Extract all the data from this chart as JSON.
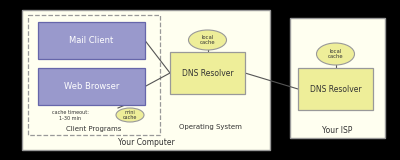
{
  "bg_color": "#000000",
  "diagram_bg": "#fffff0",
  "box_color_blue": "#9999cc",
  "box_color_yellow": "#eeee99",
  "line_color": "#555555",
  "text_color": "#333333",
  "border_color": "#999999",
  "your_computer_label": "Your Computer",
  "isp_label": "Your ISP",
  "client_programs_label": "Client Programs",
  "os_label": "Operating System",
  "mail_client_label": "Mail Client",
  "web_browser_label": "Web Browser",
  "dns_resolver_label": "DNS Resolver",
  "local_cache_label": "local\ncache",
  "mini_cache_label": "mini\ncache",
  "cache_timeout_label": "cache timeout:\n1-30 min"
}
